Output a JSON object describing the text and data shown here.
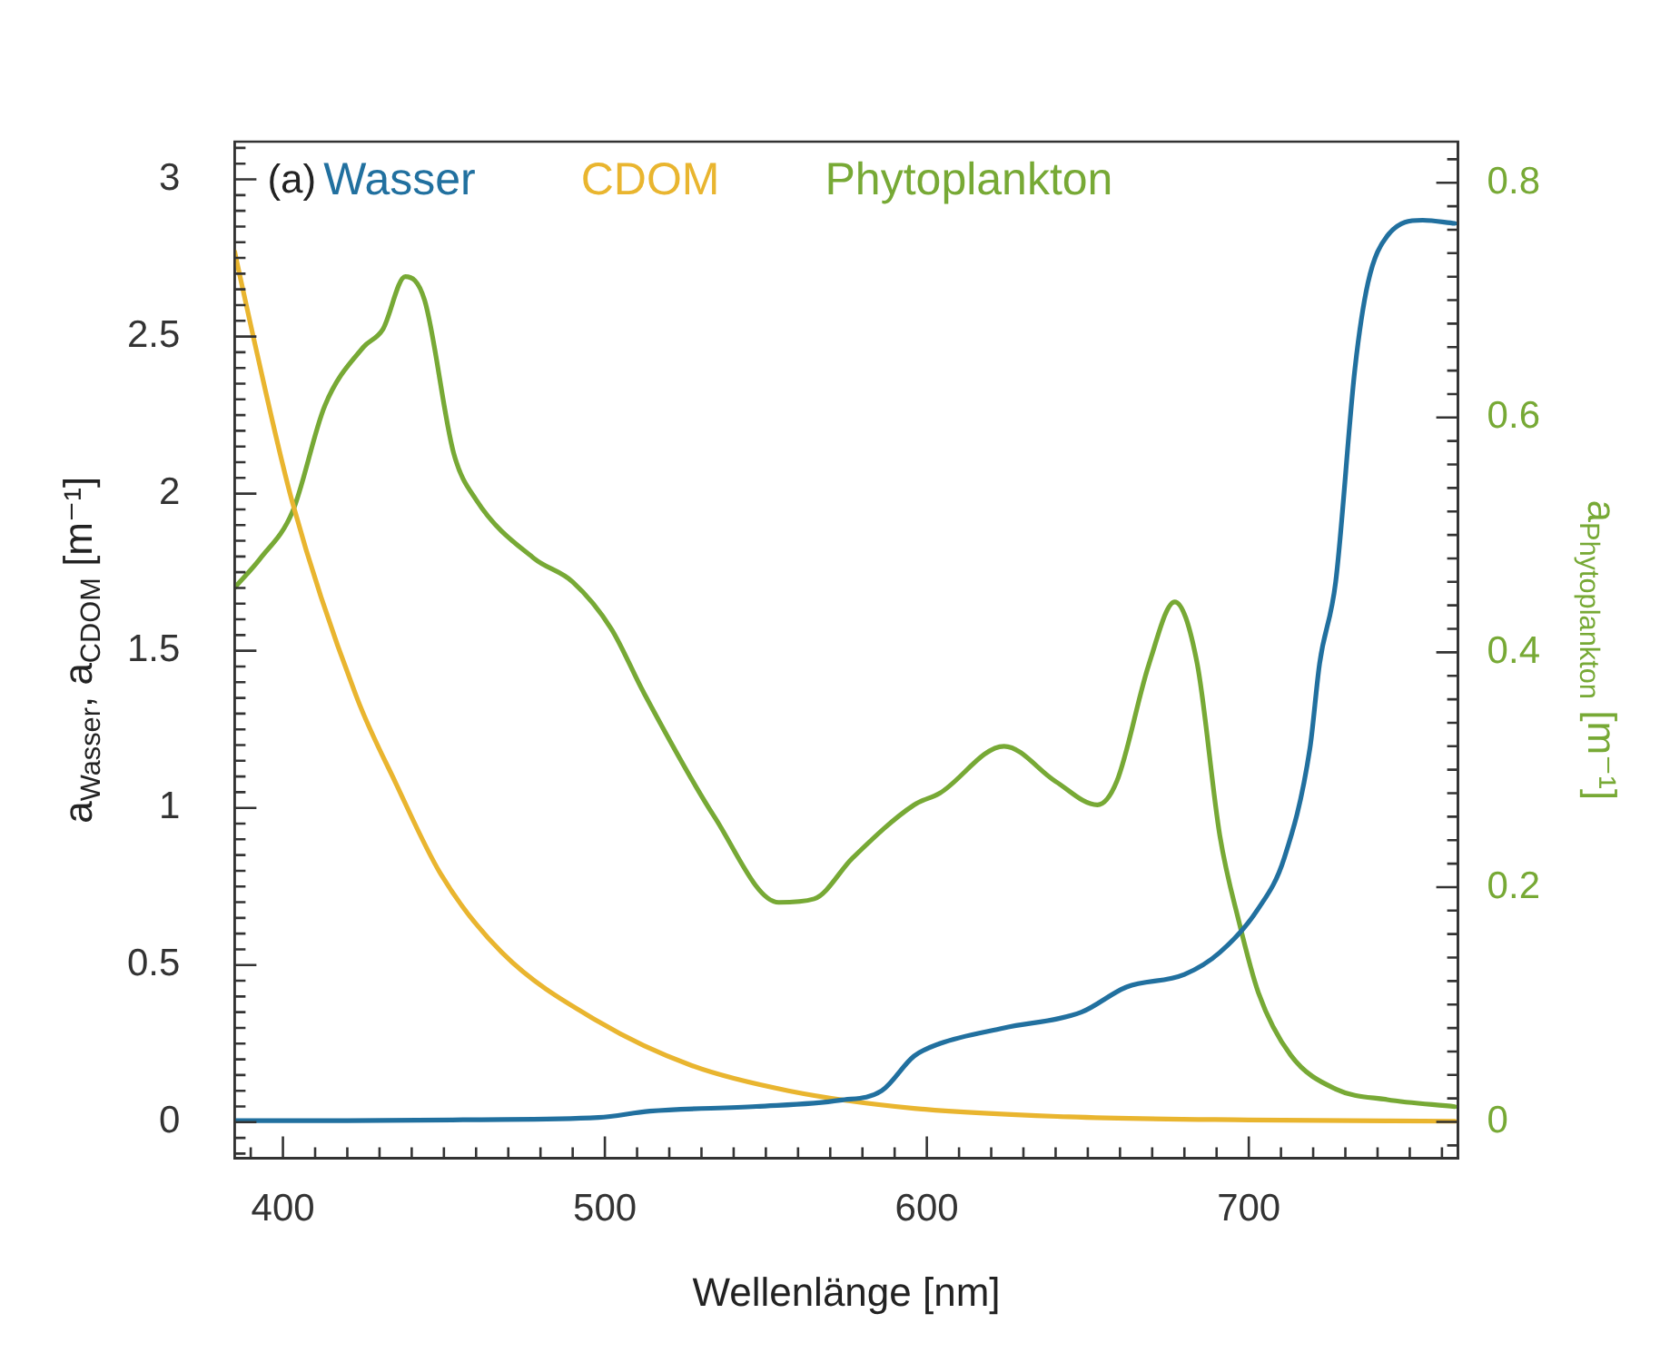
{
  "chart_data": {
    "type": "line",
    "xlabel": "Wellenlänge [nm]",
    "ylabel": "a$_{Wasser}$, a$_{CDOM}$ [m⁻¹]",
    "y2label": "a$_{Phytoplankton}$ [m⁻¹]",
    "annotations": [
      "(a)"
    ],
    "legend": "top left",
    "grid": false,
    "marker": "none",
    "line_style": "solid",
    "xlim": [
      385,
      765
    ],
    "ylim": [
      -0.115,
      3.12
    ],
    "y2lim": [
      -0.031,
      0.835
    ],
    "xticks": [
      {
        "value": 390,
        "label": null
      },
      400,
      {
        "value": 410,
        "label": null
      },
      {
        "value": 420,
        "label": null
      },
      {
        "value": 430,
        "label": null
      },
      {
        "value": 440,
        "label": null
      },
      {
        "value": 450,
        "label": null
      },
      {
        "value": 460,
        "label": null
      },
      {
        "value": 470,
        "label": null
      },
      {
        "value": 480,
        "label": null
      },
      {
        "value": 490,
        "label": null
      },
      500,
      {
        "value": 510,
        "label": null
      },
      {
        "value": 520,
        "label": null
      },
      {
        "value": 530,
        "label": null
      },
      {
        "value": 540,
        "label": null
      },
      {
        "value": 550,
        "label": null
      },
      {
        "value": 560,
        "label": null
      },
      {
        "value": 570,
        "label": null
      },
      {
        "value": 580,
        "label": null
      },
      {
        "value": 590,
        "label": null
      },
      600,
      {
        "value": 610,
        "label": null
      },
      {
        "value": 620,
        "label": null
      },
      {
        "value": 630,
        "label": null
      },
      {
        "value": 640,
        "label": null
      },
      {
        "value": 650,
        "label": null
      },
      {
        "value": 660,
        "label": null
      },
      {
        "value": 670,
        "label": null
      },
      {
        "value": 680,
        "label": null
      },
      {
        "value": 690,
        "label": null
      },
      700,
      {
        "value": 710,
        "label": null
      },
      {
        "value": 720,
        "label": null
      },
      {
        "value": 730,
        "label": null
      },
      {
        "value": 740,
        "label": null
      },
      {
        "value": 750,
        "label": null
      },
      {
        "value": 760,
        "label": null
      }
    ],
    "yticks": [
      {
        "value": -0.1,
        "label": null
      },
      {
        "value": -0.05,
        "label": null
      },
      0,
      {
        "value": 0.05,
        "label": null
      },
      {
        "value": 0.1,
        "label": null
      },
      {
        "value": 0.15,
        "label": null
      },
      {
        "value": 0.2,
        "label": null
      },
      {
        "value": 0.25,
        "label": null
      },
      {
        "value": 0.3,
        "label": null
      },
      {
        "value": 0.35,
        "label": null
      },
      {
        "value": 0.4,
        "label": null
      },
      {
        "value": 0.45,
        "label": null
      },
      0.5,
      {
        "value": 0.55,
        "label": null
      },
      {
        "value": 0.6,
        "label": null
      },
      {
        "value": 0.65,
        "label": null
      },
      {
        "value": 0.7,
        "label": null
      },
      {
        "value": 0.75,
        "label": null
      },
      {
        "value": 0.8,
        "label": null
      },
      {
        "value": 0.85,
        "label": null
      },
      {
        "value": 0.9,
        "label": null
      },
      {
        "value": 0.95,
        "label": null
      },
      1,
      {
        "value": 1.05,
        "label": null
      },
      {
        "value": 1.1,
        "label": null
      },
      {
        "value": 1.15,
        "label": null
      },
      {
        "value": 1.2,
        "label": null
      },
      {
        "value": 1.25,
        "label": null
      },
      {
        "value": 1.3,
        "label": null
      },
      {
        "value": 1.35,
        "label": null
      },
      {
        "value": 1.4,
        "label": null
      },
      {
        "value": 1.45,
        "label": null
      },
      1.5,
      {
        "value": 1.55,
        "label": null
      },
      {
        "value": 1.6,
        "label": null
      },
      {
        "value": 1.65,
        "label": null
      },
      {
        "value": 1.7,
        "label": null
      },
      {
        "value": 1.75,
        "label": null
      },
      {
        "value": 1.8,
        "label": null
      },
      {
        "value": 1.85,
        "label": null
      },
      {
        "value": 1.9,
        "label": null
      },
      {
        "value": 1.95,
        "label": null
      },
      2,
      {
        "value": 2.05,
        "label": null
      },
      {
        "value": 2.1,
        "label": null
      },
      {
        "value": 2.15,
        "label": null
      },
      {
        "value": 2.2,
        "label": null
      },
      {
        "value": 2.25,
        "label": null
      },
      {
        "value": 2.3,
        "label": null
      },
      {
        "value": 2.35,
        "label": null
      },
      {
        "value": 2.4,
        "label": null
      },
      {
        "value": 2.45,
        "label": null
      },
      2.5,
      {
        "value": 2.55,
        "label": null
      },
      {
        "value": 2.6,
        "label": null
      },
      {
        "value": 2.65,
        "label": null
      },
      {
        "value": 2.7,
        "label": null
      },
      {
        "value": 2.75,
        "label": null
      },
      {
        "value": 2.8,
        "label": null
      },
      {
        "value": 2.85,
        "label": null
      },
      {
        "value": 2.9,
        "label": null
      },
      {
        "value": 2.95,
        "label": null
      },
      3,
      {
        "value": 3.05,
        "label": null
      },
      {
        "value": 3.1,
        "label": null
      }
    ],
    "y2ticks": [
      {
        "value": -0.02,
        "label": null
      },
      0,
      {
        "value": 0.02,
        "label": null
      },
      {
        "value": 0.04,
        "label": null
      },
      {
        "value": 0.06,
        "label": null
      },
      {
        "value": 0.08,
        "label": null
      },
      {
        "value": 0.1,
        "label": null
      },
      {
        "value": 0.12,
        "label": null
      },
      {
        "value": 0.14,
        "label": null
      },
      {
        "value": 0.16,
        "label": null
      },
      {
        "value": 0.18,
        "label": null
      },
      0.2,
      {
        "value": 0.22,
        "label": null
      },
      {
        "value": 0.24,
        "label": null
      },
      {
        "value": 0.26,
        "label": null
      },
      {
        "value": 0.28,
        "label": null
      },
      {
        "value": 0.3,
        "label": null
      },
      {
        "value": 0.32,
        "label": null
      },
      {
        "value": 0.34,
        "label": null
      },
      {
        "value": 0.36,
        "label": null
      },
      {
        "value": 0.38,
        "label": null
      },
      0.4,
      {
        "value": 0.42,
        "label": null
      },
      {
        "value": 0.44,
        "label": null
      },
      {
        "value": 0.46,
        "label": null
      },
      {
        "value": 0.48,
        "label": null
      },
      {
        "value": 0.5,
        "label": null
      },
      {
        "value": 0.52,
        "label": null
      },
      {
        "value": 0.54,
        "label": null
      },
      {
        "value": 0.56,
        "label": null
      },
      {
        "value": 0.58,
        "label": null
      },
      0.6,
      {
        "value": 0.62,
        "label": null
      },
      {
        "value": 0.64,
        "label": null
      },
      {
        "value": 0.66,
        "label": null
      },
      {
        "value": 0.68,
        "label": null
      },
      {
        "value": 0.7,
        "label": null
      },
      {
        "value": 0.72,
        "label": null
      },
      {
        "value": 0.74,
        "label": null
      },
      {
        "value": 0.76,
        "label": null
      },
      {
        "value": 0.78,
        "label": null
      },
      0.8,
      {
        "value": 0.82,
        "label": null
      }
    ],
    "series": [
      {
        "name": "Wasser",
        "color": "#21709f",
        "x": [
          385,
          420,
          460,
          498,
          514,
          547,
          573,
          586,
          596,
          604,
          624,
          648,
          662,
          680,
          691,
          703,
          711,
          719,
          722,
          727,
          733,
          737,
          743,
          754,
          764
        ],
        "values": [
          0.005,
          0.005,
          0.008,
          0.015,
          0.035,
          0.05,
          0.07,
          0.1,
          0.21,
          0.25,
          0.3,
          0.35,
          0.43,
          0.47,
          0.54,
          0.68,
          0.84,
          1.19,
          1.46,
          1.72,
          2.4,
          2.67,
          2.82,
          2.87,
          2.86
        ]
      },
      {
        "name": "CDOM",
        "color": "#e9b52f",
        "x": [
          385,
          391,
          403,
          423,
          435,
          449,
          468,
          498,
          527,
          557,
          596,
          644,
          700,
          764
        ],
        "values": [
          2.77,
          2.49,
          1.97,
          1.35,
          1.08,
          0.79,
          0.54,
          0.32,
          0.18,
          0.1,
          0.044,
          0.017,
          0.007,
          0.003
        ]
      },
      {
        "name": "Phytoplankton",
        "color": "#77a935",
        "axis": "y2",
        "x": [
          385,
          393,
          403,
          413,
          425,
          431,
          438,
          444,
          453,
          460,
          478,
          490,
          502,
          512,
          534,
          554,
          565,
          577,
          596,
          604,
          624,
          640,
          653,
          659,
          669,
          677,
          684,
          691,
          697,
          703,
          713,
          727,
          743,
          764
        ],
        "values": [
          0.455,
          0.48,
          0.52,
          0.61,
          0.66,
          0.675,
          0.72,
          0.7,
          0.57,
          0.53,
          0.48,
          0.46,
          0.42,
          0.366,
          0.26,
          0.187,
          0.19,
          0.225,
          0.27,
          0.28,
          0.32,
          0.29,
          0.27,
          0.29,
          0.39,
          0.443,
          0.39,
          0.244,
          0.17,
          0.11,
          0.057,
          0.028,
          0.019,
          0.013
        ]
      }
    ]
  }
}
